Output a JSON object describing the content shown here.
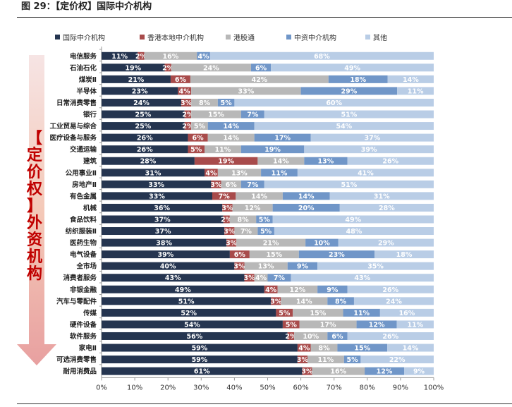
{
  "title": "图 29：【定价权】国际中介机构",
  "side_label": "【定价权】外资机构",
  "colors": [
    "#253550",
    "#a84b4b",
    "#b8b8b8",
    "#7096c8",
    "#b9cde6"
  ],
  "chart_data": {
    "type": "bar",
    "orientation": "horizontal",
    "stacked": true,
    "title": "",
    "xlim": [
      0,
      100
    ],
    "xticks": [
      "0%",
      "10%",
      "20%",
      "30%",
      "40%",
      "50%",
      "60%",
      "70%",
      "80%",
      "90%",
      "100%"
    ],
    "legend_position": "top",
    "categories": [
      "电信服务",
      "石油石化",
      "煤炭Ⅱ",
      "半导体",
      "日常消费零售",
      "银行",
      "工业贸易与综合",
      "医疗设备与服务",
      "交通运输",
      "建筑",
      "公用事业Ⅱ",
      "房地产Ⅱ",
      "有色金属",
      "机械",
      "食品饮料",
      "纺织服装Ⅱ",
      "医药生物",
      "电气设备",
      "全市场",
      "消费者服务",
      "非银金融",
      "汽车与零配件",
      "传媒",
      "硬件设备",
      "软件服务",
      "家电Ⅱ",
      "可选消费零售",
      "耐用消费品"
    ],
    "series": [
      {
        "name": "国际中介机构",
        "values": [
          11,
          19,
          21,
          23,
          24,
          25,
          25,
          26,
          26,
          28,
          31,
          33,
          33,
          36,
          37,
          37,
          38,
          39,
          40,
          43,
          49,
          51,
          52,
          54,
          56,
          59,
          59,
          61
        ]
      },
      {
        "name": "香港本地中介机构",
        "values": [
          2,
          2,
          6,
          4,
          3,
          2,
          2,
          6,
          5,
          19,
          4,
          3,
          7,
          3,
          2,
          3,
          3,
          6,
          3,
          3,
          4,
          3,
          5,
          5,
          2,
          4,
          3,
          3
        ]
      },
      {
        "name": "港股通",
        "values": [
          16,
          24,
          42,
          33,
          8,
          15,
          5,
          14,
          11,
          14,
          13,
          6,
          14,
          12,
          8,
          7,
          21,
          15,
          13,
          4,
          12,
          14,
          15,
          17,
          10,
          8,
          11,
          16
        ]
      },
      {
        "name": "中资中介机构",
        "values": [
          4,
          6,
          18,
          29,
          5,
          7,
          14,
          17,
          19,
          13,
          11,
          7,
          14,
          20,
          5,
          5,
          10,
          23,
          9,
          7,
          9,
          8,
          11,
          12,
          6,
          15,
          5,
          12
        ]
      },
      {
        "name": "其他",
        "values": [
          68,
          49,
          14,
          11,
          60,
          51,
          54,
          37,
          39,
          26,
          41,
          51,
          31,
          28,
          49,
          48,
          29,
          18,
          35,
          43,
          26,
          24,
          16,
          11,
          26,
          14,
          22,
          9
        ]
      }
    ]
  }
}
